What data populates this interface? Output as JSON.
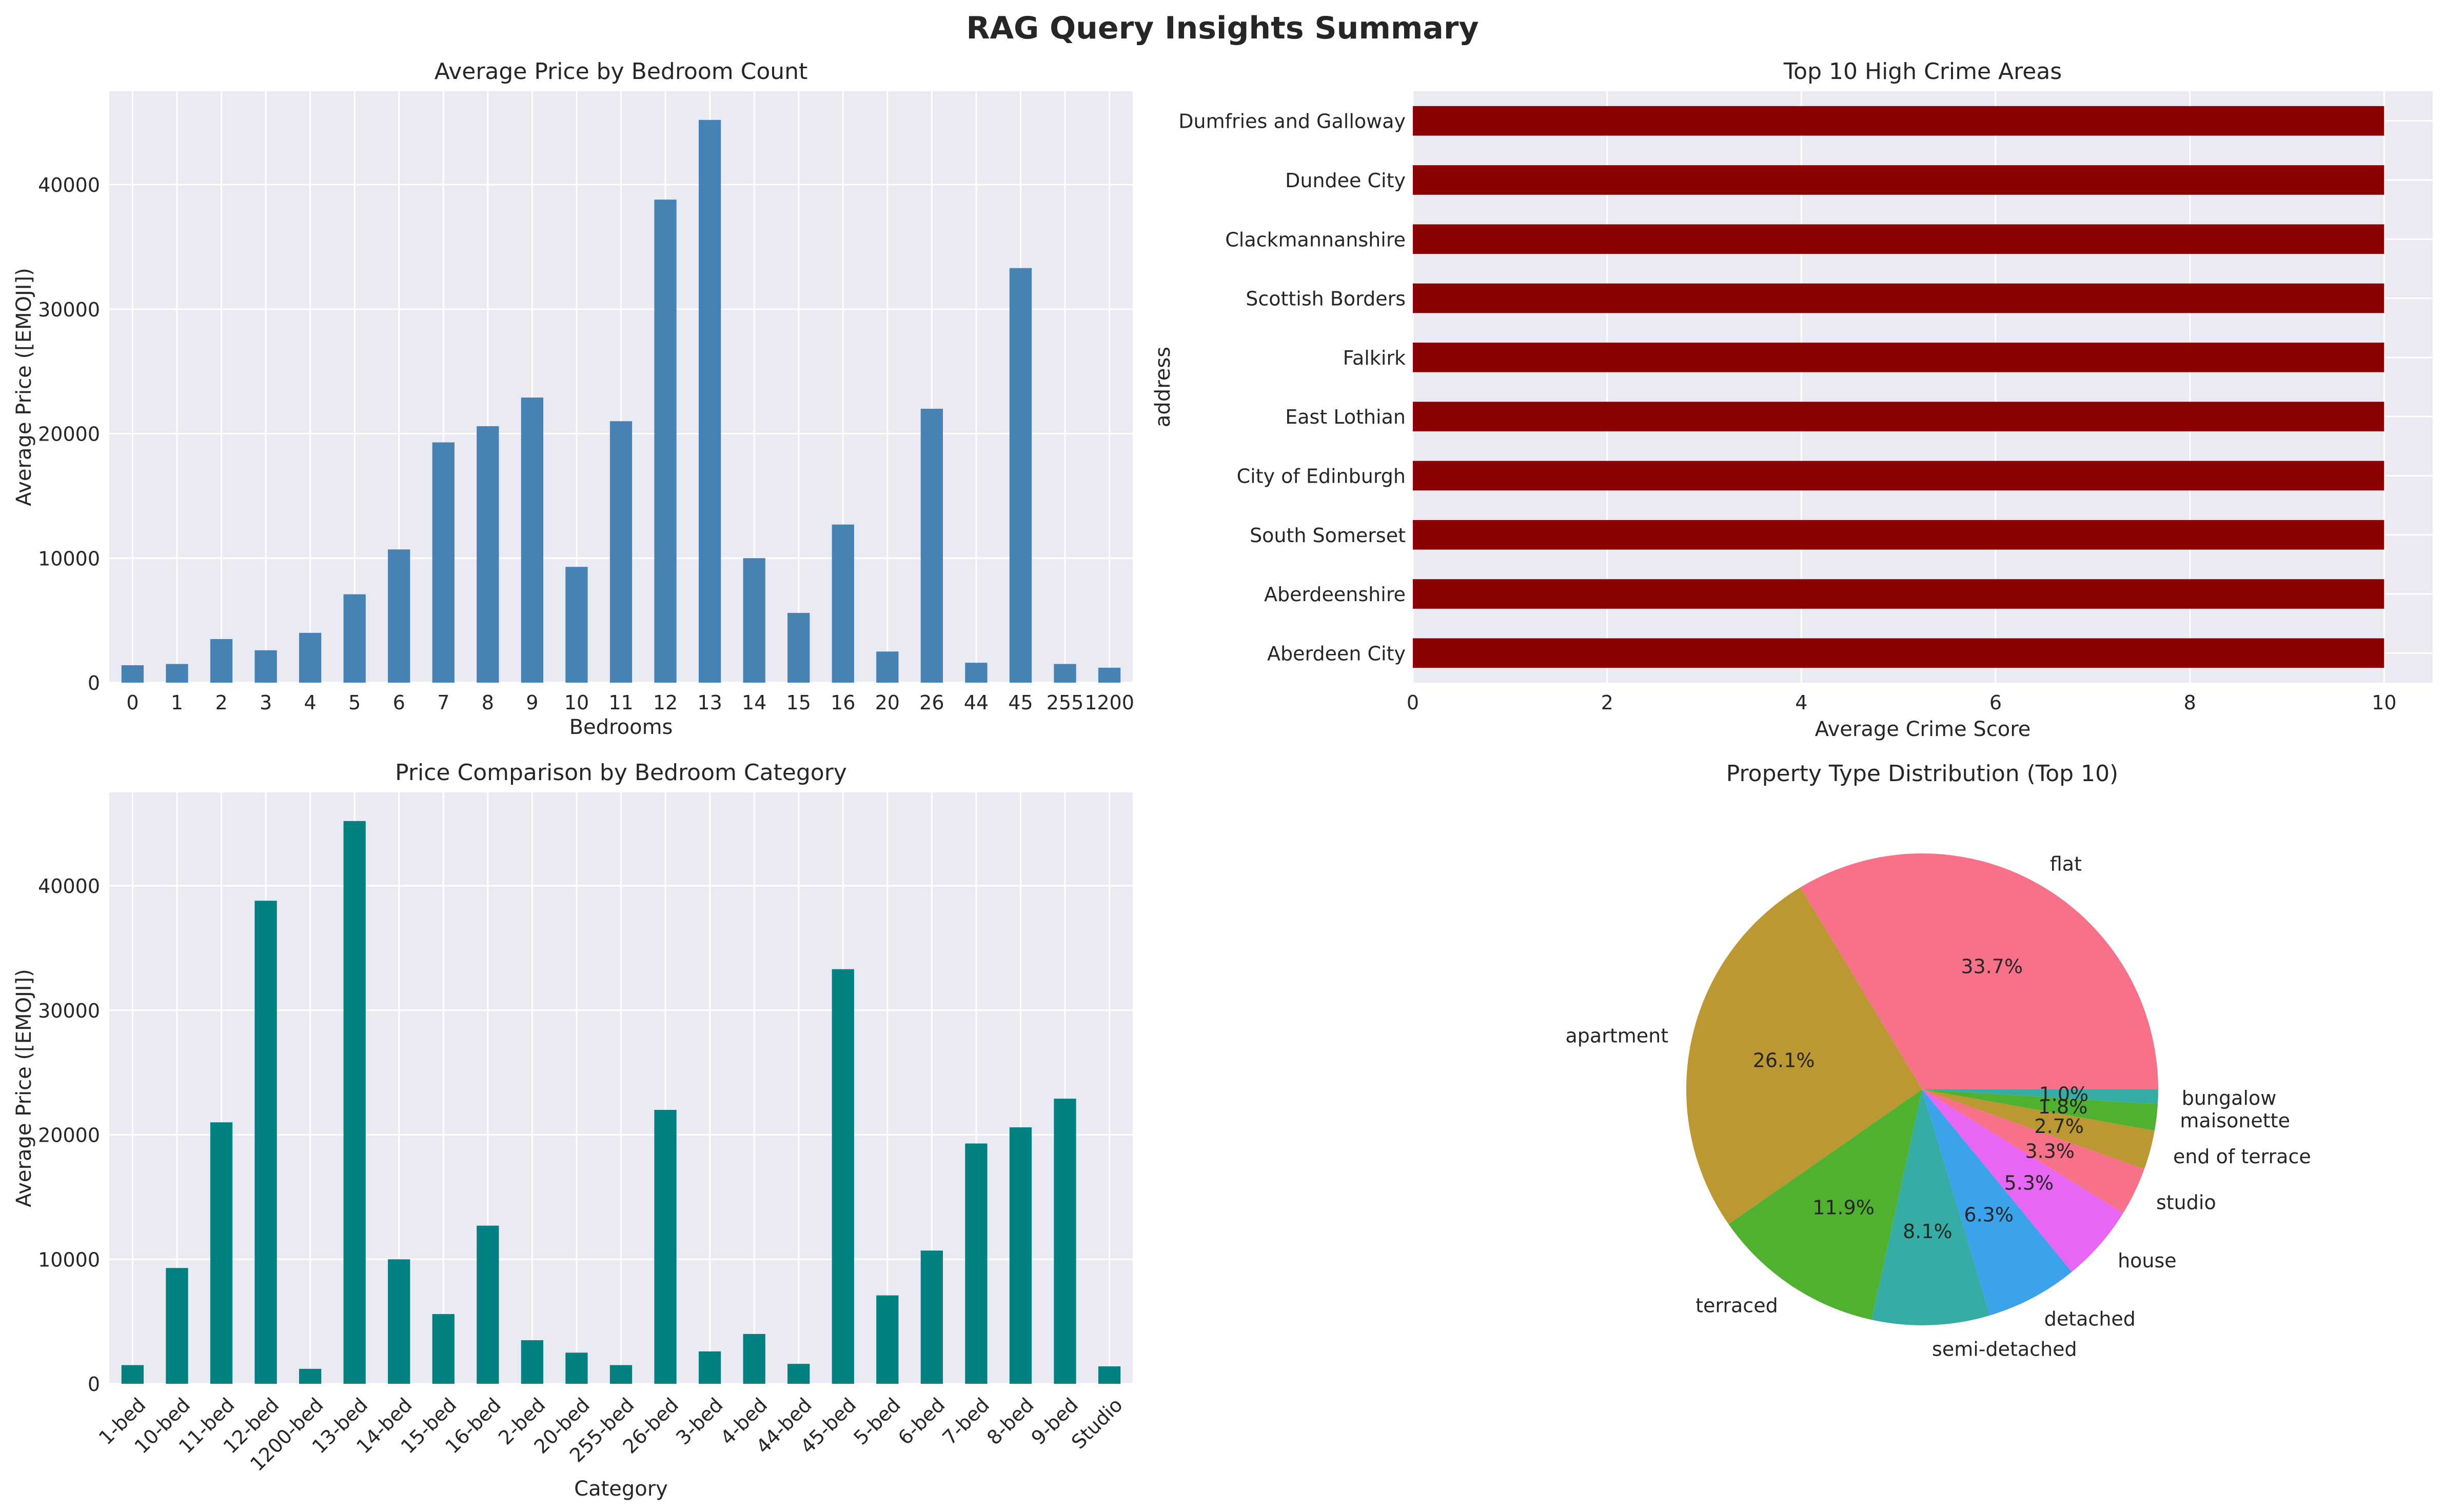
{
  "figure": {
    "suptitle": "RAG Query Insights Summary"
  },
  "chart_data": [
    {
      "id": "bedroom_price",
      "type": "bar",
      "title": "Average Price by Bedroom Count",
      "xlabel": "Bedrooms",
      "ylabel": "Average Price ([EMOJI])",
      "ylim": [
        0,
        47500
      ],
      "yticks": [
        0,
        10000,
        20000,
        30000,
        40000
      ],
      "grid": true,
      "color": "#4682b4",
      "categories": [
        "0",
        "1",
        "2",
        "3",
        "4",
        "5",
        "6",
        "7",
        "8",
        "9",
        "10",
        "11",
        "12",
        "13",
        "14",
        "15",
        "16",
        "20",
        "26",
        "44",
        "45",
        "255",
        "1200"
      ],
      "values": [
        1400,
        1500,
        3500,
        2600,
        4000,
        7100,
        10700,
        19300,
        20600,
        22900,
        9300,
        21000,
        38800,
        45200,
        10000,
        5600,
        12700,
        2500,
        22000,
        1600,
        33300,
        1500,
        1200
      ]
    },
    {
      "id": "crime_areas",
      "type": "bar",
      "orientation": "horizontal",
      "title": "Top 10 High Crime Areas",
      "xlabel": "Average Crime Score",
      "ylabel": "address",
      "xlim": [
        0,
        10.5
      ],
      "xticks": [
        0,
        2,
        4,
        6,
        8,
        10
      ],
      "grid": true,
      "color": "#8b0000",
      "categories": [
        "Dumfries and Galloway",
        "Dundee City",
        "Clackmannanshire",
        "Scottish Borders",
        "Falkirk",
        "East Lothian",
        "City of Edinburgh",
        "South Somerset",
        "Aberdeenshire",
        "Aberdeen City"
      ],
      "values": [
        10,
        10,
        10,
        10,
        10,
        10,
        10,
        10,
        10,
        10
      ]
    },
    {
      "id": "category_price",
      "type": "bar",
      "title": "Price Comparison by Bedroom Category",
      "xlabel": "Category",
      "ylabel": "Average Price ([EMOJI])",
      "ylim": [
        0,
        47500
      ],
      "yticks": [
        0,
        10000,
        20000,
        30000,
        40000
      ],
      "grid": true,
      "color": "#008080",
      "categories": [
        "1-bed",
        "10-bed",
        "11-bed",
        "12-bed",
        "1200-bed",
        "13-bed",
        "14-bed",
        "15-bed",
        "16-bed",
        "2-bed",
        "20-bed",
        "255-bed",
        "26-bed",
        "3-bed",
        "4-bed",
        "44-bed",
        "45-bed",
        "5-bed",
        "6-bed",
        "7-bed",
        "8-bed",
        "9-bed",
        "Studio"
      ],
      "values": [
        1500,
        9300,
        21000,
        38800,
        1200,
        45200,
        10000,
        5600,
        12700,
        3500,
        2500,
        1500,
        22000,
        2600,
        4000,
        1600,
        33300,
        7100,
        10700,
        19300,
        20600,
        22900,
        1400
      ]
    },
    {
      "id": "property_types",
      "type": "pie",
      "title": "Property Type Distribution (Top 10)",
      "labels": [
        "flat",
        "apartment",
        "terraced",
        "semi-detached",
        "detached",
        "house",
        "studio",
        "end of terrace",
        "maisonette",
        "bungalow"
      ],
      "values": [
        33.7,
        26.1,
        11.9,
        8.1,
        6.3,
        5.3,
        3.3,
        2.7,
        1.8,
        1.0
      ],
      "pct_labels": [
        "33.7%",
        "26.1%",
        "11.9%",
        "8.1%",
        "6.3%",
        "5.3%",
        "3.3%",
        "2.7%",
        "1.8%",
        "1.0%"
      ],
      "colors": [
        "#f77189",
        "#bb9832",
        "#50b131",
        "#36ada4",
        "#3ba3ec",
        "#e866f4",
        "#f77189",
        "#bb9832",
        "#50b131",
        "#36ada4"
      ]
    }
  ]
}
